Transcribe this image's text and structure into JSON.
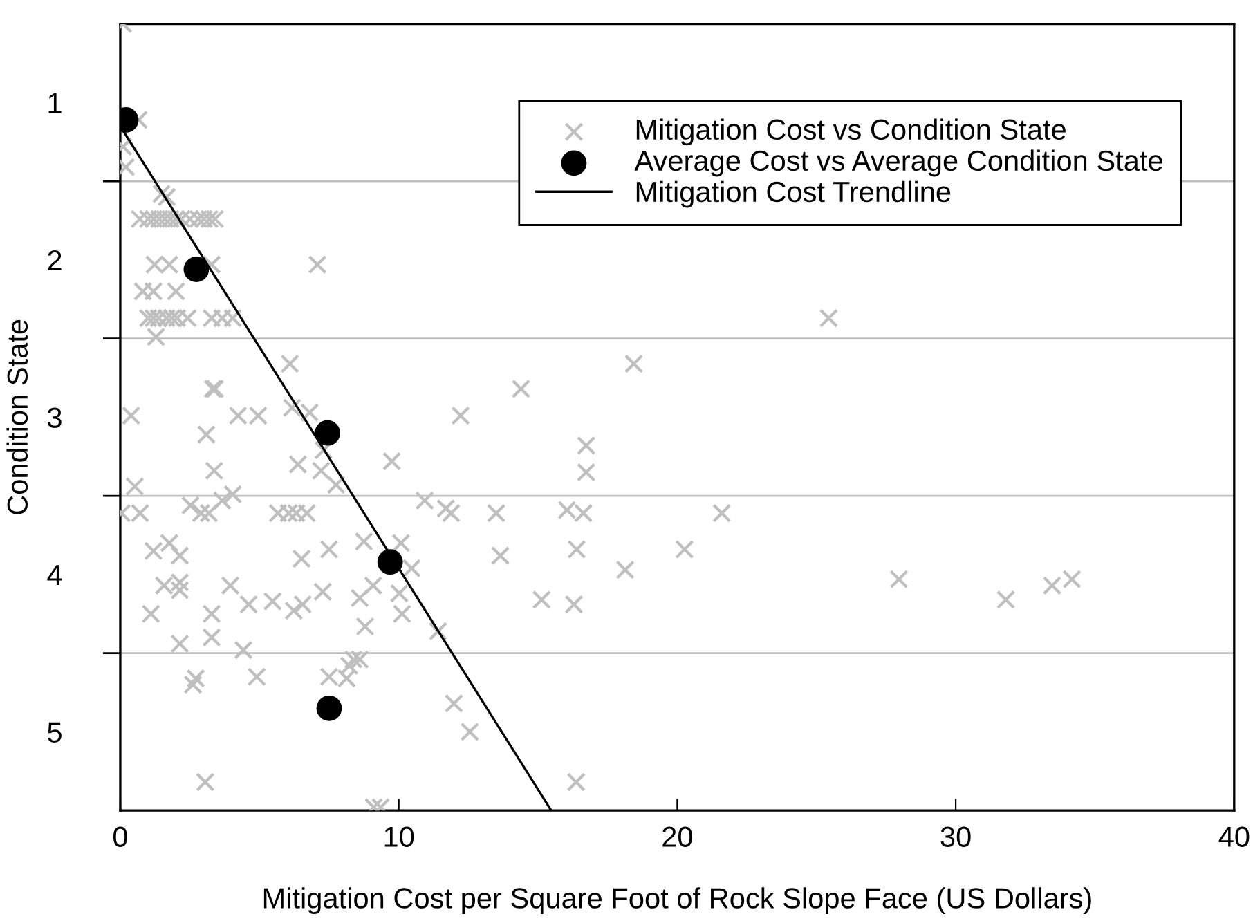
{
  "chart_data": {
    "type": "scatter",
    "xlabel": "Mitigation Cost per Square Foot of Rock Slope Face (US Dollars)",
    "ylabel": "Condition State",
    "xlim": [
      0,
      40
    ],
    "xticks": [
      0,
      10,
      20,
      30,
      40
    ],
    "ylim": [
      5.5,
      0.5
    ],
    "yticks": [
      1,
      2,
      3,
      4,
      5,
      {
        "value": 1.5,
        "label": null
      },
      {
        "value": 2.5,
        "label": null
      },
      {
        "value": 3.5,
        "label": null
      },
      {
        "value": 4.5,
        "label": null
      }
    ],
    "grid": "y",
    "legend": "top right",
    "series": [
      {
        "name": "Mitigation Cost vs Condition State",
        "marker": "cross",
        "color": "#bfbfbf",
        "x": [
          0.1,
          0.66,
          0.1,
          0.2,
          1.48,
          1.67,
          0.7,
          1.0,
          1.2,
          1.4,
          1.6,
          1.8,
          2.0,
          2.2,
          2.5,
          2.8,
          3.0,
          3.2,
          3.4,
          1.23,
          1.76,
          3.28,
          7.08,
          0.81,
          1.19,
          2.0,
          1.0,
          1.19,
          1.38,
          1.66,
          1.85,
          2.04,
          2.42,
          3.28,
          3.66,
          4.04,
          1.28,
          6.09,
          3.32,
          3.4,
          0.39,
          4.23,
          4.95,
          6.17,
          6.8,
          3.09,
          3.37,
          6.38,
          7.21,
          7.3,
          7.75,
          0.52,
          4.04,
          3.66,
          0.05,
          0.71,
          2.9,
          3.18,
          5.66,
          6.05,
          6.32,
          6.7,
          2.52,
          1.76,
          1.19,
          2.14,
          6.51,
          7.5,
          8.75,
          10.08,
          1.57,
          2.14,
          2.14,
          3.95,
          7.27,
          8.6,
          9.08,
          1.1,
          3.28,
          4.61,
          5.47,
          6.23,
          6.55,
          8.79,
          10.12,
          2.14,
          3.28,
          4.42,
          4.9,
          2.71,
          2.61,
          7.5,
          8.22,
          8.37,
          8.6,
          8.13,
          3.05,
          9.1,
          9.35,
          14.39,
          12.22,
          18.44,
          16.73,
          16.73,
          9.75,
          10.93,
          11.69,
          11.88,
          13.5,
          16.04,
          16.63,
          16.39,
          13.65,
          18.13,
          20.26,
          10.46,
          10.02,
          15.13,
          16.29,
          11.41,
          11.98,
          12.55,
          16.37,
          21.6,
          25.44,
          27.96,
          31.8,
          33.46,
          34.17
        ],
        "values": [
          0.5,
          1.11,
          1.28,
          1.41,
          1.58,
          1.6,
          1.74,
          1.74,
          1.74,
          1.74,
          1.74,
          1.74,
          1.74,
          1.74,
          1.74,
          1.74,
          1.74,
          1.74,
          1.74,
          2.03,
          2.03,
          2.03,
          2.03,
          2.2,
          2.2,
          2.2,
          2.37,
          2.37,
          2.37,
          2.37,
          2.37,
          2.37,
          2.37,
          2.37,
          2.37,
          2.37,
          2.49,
          2.66,
          2.82,
          2.82,
          2.99,
          2.99,
          2.99,
          2.94,
          2.97,
          3.11,
          3.34,
          3.3,
          3.34,
          3.21,
          3.43,
          3.44,
          3.49,
          3.53,
          3.61,
          3.61,
          3.61,
          3.61,
          3.61,
          3.61,
          3.61,
          3.61,
          3.56,
          3.8,
          3.85,
          3.88,
          3.9,
          3.84,
          3.79,
          3.8,
          4.07,
          4.05,
          4.1,
          4.07,
          4.11,
          4.15,
          4.07,
          4.25,
          4.25,
          4.19,
          4.17,
          4.23,
          4.19,
          4.33,
          4.25,
          4.44,
          4.4,
          4.48,
          4.65,
          4.66,
          4.7,
          4.65,
          4.58,
          4.54,
          4.54,
          4.66,
          5.32,
          5.48,
          5.48,
          2.82,
          2.99,
          2.66,
          3.18,
          3.35,
          3.28,
          3.53,
          3.58,
          3.61,
          3.61,
          3.59,
          3.61,
          3.84,
          3.88,
          3.97,
          3.84,
          3.96,
          4.12,
          4.16,
          4.19,
          4.36,
          4.82,
          5.0,
          5.32,
          3.61,
          2.37,
          4.03,
          4.16,
          4.07,
          4.03
        ]
      },
      {
        "name": "Average Cost vs Average Condition State",
        "marker": "circle",
        "color": "#000000",
        "x": [
          0.2,
          2.73,
          7.44,
          9.69,
          7.5
        ],
        "values": [
          1.11,
          2.06,
          3.1,
          3.92,
          4.85
        ]
      },
      {
        "name": "Mitigation Cost Trendline",
        "type": "line",
        "marker": "none",
        "line_style": "solid",
        "color": "#000000",
        "x": [
          0,
          15.44
        ],
        "values": [
          1.15,
          5.49
        ]
      }
    ]
  }
}
